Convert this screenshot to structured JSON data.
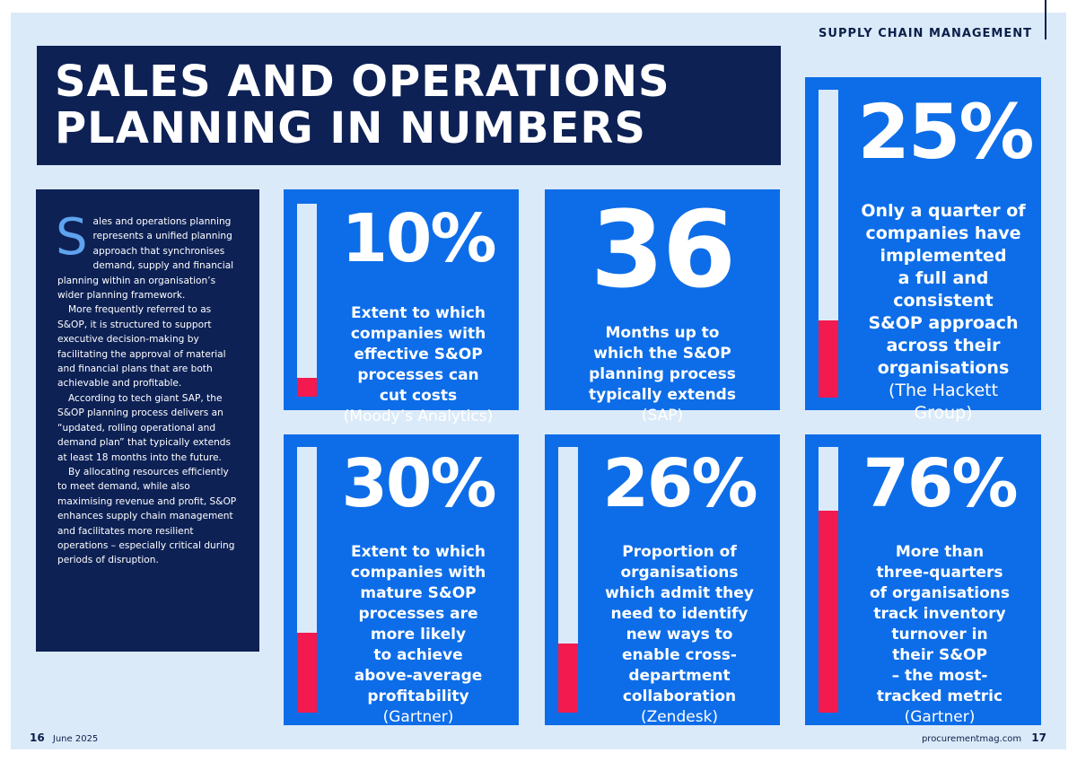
{
  "header": {
    "section": "SUPPLY CHAIN MANAGEMENT",
    "title_line1": "SALES AND OPERATIONS",
    "title_line2": "PLANNING IN NUMBERS"
  },
  "intro": {
    "dropcap": "S",
    "p1": "ales and operations planning represents a unified planning approach that synchronises demand, supply and financial planning within an organisation’s wider planning framework.",
    "p2": "More frequently referred to as S&OP, it is structured to support executive decision-making by facilitating the approval of material and financial plans that are both achievable and profitable.",
    "p3": "According to tech giant SAP, the S&OP planning process delivers an “updated, rolling operational and demand plan” that typically extends at least 18 months into the future.",
    "p4": "By allocating resources efficiently to meet demand, while also maximising revenue and profit, S&OP enhances supply chain management and facilitates more resilient operations – especially critical during periods of disruption."
  },
  "stats": [
    {
      "value": "10%",
      "fill": 0.1,
      "text": "Extent to which\ncompanies with\neffective S&OP\nprocesses can\ncut costs",
      "source": "(Moody’s Analytics)"
    },
    {
      "value": "36",
      "text": "Months up to\nwhich the S&OP\nplanning process\ntypically extends",
      "source": "(SAP)"
    },
    {
      "value": "25%",
      "fill": 0.25,
      "text": "Only a quarter of\ncompanies have\nimplemented\na full and\nconsistent\nS&OP approach\nacross their\norganisations",
      "source": "(The Hackett\nGroup)"
    },
    {
      "value": "30%",
      "fill": 0.3,
      "text": "Extent to which\ncompanies with\nmature S&OP\nprocesses are\nmore likely\nto achieve\nabove-average\nprofitability",
      "source": "(Gartner)"
    },
    {
      "value": "26%",
      "fill": 0.26,
      "text": "Proportion of\norganisations\nwhich admit they\nneed to identify\nnew ways to\nenable cross-\ndepartment\ncollaboration",
      "source": "(Zendesk)"
    },
    {
      "value": "76%",
      "fill": 0.76,
      "text": "More than\nthree-quarters\nof organisations\ntrack inventory\nturnover in\ntheir S&OP\n– the most-\ntracked metric",
      "source": "(Gartner)"
    }
  ],
  "footer": {
    "left_page": "16",
    "left_date": "June 2025",
    "right_site": "procurementmag.com",
    "right_page": "17"
  },
  "colors": {
    "navy": "#0d2155",
    "card_blue": "#0d6de8",
    "bar_track": "#dbeaf9",
    "bar_fill": "#f21a4f",
    "page_bg": "#dbeaf9"
  }
}
